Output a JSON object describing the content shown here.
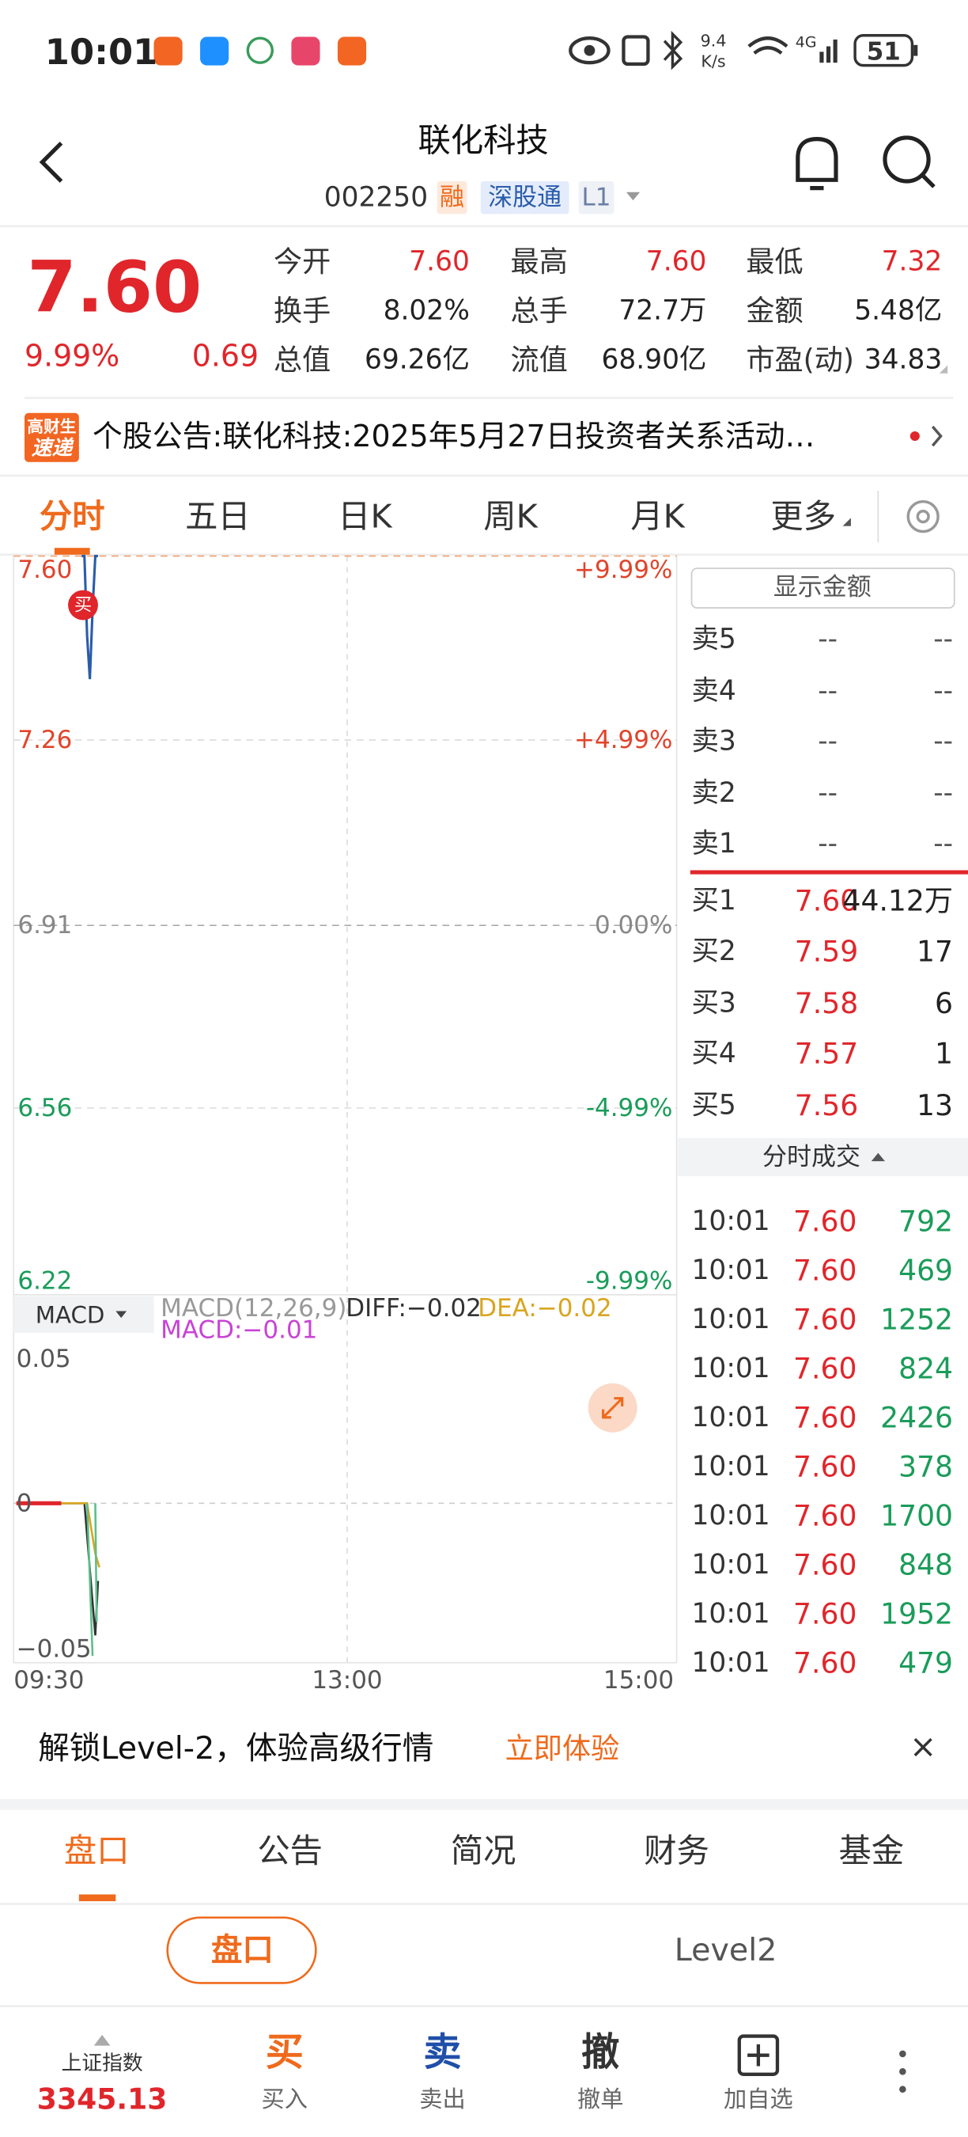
{
  "status_bar": {
    "time": "10:01",
    "net_speed_value": "9.4",
    "net_speed_unit": "K/s",
    "signal": "4G",
    "battery": "51"
  },
  "header": {
    "title": "联化科技",
    "code": "002250",
    "tags": [
      "融",
      "深股通",
      "L1"
    ]
  },
  "quote": {
    "price": "7.60",
    "change_pct": "9.99%",
    "change": "0.69",
    "stats": [
      {
        "label": "今开",
        "value": "7.60",
        "color": "#e0262b"
      },
      {
        "label": "最高",
        "value": "7.60",
        "color": "#e0262b"
      },
      {
        "label": "最低",
        "value": "7.32",
        "color": "#e0262b"
      },
      {
        "label": "换手",
        "value": "8.02%",
        "color": "#222222"
      },
      {
        "label": "总手",
        "value": "72.7万",
        "color": "#222222"
      },
      {
        "label": "金额",
        "value": "5.48亿",
        "color": "#222222"
      },
      {
        "label": "总值",
        "value": "69.26亿",
        "color": "#222222"
      },
      {
        "label": "流值",
        "value": "68.90亿",
        "color": "#222222"
      },
      {
        "label": "市盈(动)",
        "value": "34.83",
        "color": "#222222"
      }
    ]
  },
  "news": {
    "badge_top": "高财生",
    "badge_bottom": "速递",
    "text": "个股公告:联化科技:2025年5月27日投资者关系活动…"
  },
  "tabs": [
    "分时",
    "五日",
    "日K",
    "周K",
    "月K",
    "更多"
  ],
  "chart": {
    "left_labels": [
      "7.60",
      "7.26",
      "6.91",
      "6.56",
      "6.22"
    ],
    "right_labels": [
      "+9.99%",
      "+4.99%",
      "0.00%",
      "-4.99%",
      "-9.99%"
    ],
    "label_colors": [
      "#e0442b",
      "#e0442b",
      "#888888",
      "#1b9c5a",
      "#1b9c5a"
    ],
    "ylim": [
      6.22,
      7.6
    ],
    "price_line": [
      7.6,
      7.6,
      7.45,
      7.37,
      7.5,
      7.6,
      7.6
    ],
    "price_color": "#2a5caa",
    "buy_marker": "买",
    "x_labels": [
      "09:30",
      "13:00",
      "15:00"
    ]
  },
  "macd": {
    "selector": "MACD",
    "params": "MACD(12,26,9)",
    "diff": "DIFF:−0.02",
    "dea": "DEA:−0.02",
    "macd": "MACD:−0.01",
    "y_labels": [
      "0.05",
      "0",
      "−0.05"
    ]
  },
  "order_book": {
    "show_amount": "显示金额",
    "sell": [
      {
        "label": "卖5",
        "price": "--",
        "volume": "--"
      },
      {
        "label": "卖4",
        "price": "--",
        "volume": "--"
      },
      {
        "label": "卖3",
        "price": "--",
        "volume": "--"
      },
      {
        "label": "卖2",
        "price": "--",
        "volume": "--"
      },
      {
        "label": "卖1",
        "price": "--",
        "volume": "--"
      }
    ],
    "buy": [
      {
        "label": "买1",
        "price": "7.60",
        "volume": "44.12万"
      },
      {
        "label": "买2",
        "price": "7.59",
        "volume": "17"
      },
      {
        "label": "买3",
        "price": "7.58",
        "volume": "6"
      },
      {
        "label": "买4",
        "price": "7.57",
        "volume": "1"
      },
      {
        "label": "买5",
        "price": "7.56",
        "volume": "13"
      }
    ],
    "trades_title": "分时成交",
    "trades": [
      {
        "time": "10:01",
        "price": "7.60",
        "volume": "792"
      },
      {
        "time": "10:01",
        "price": "7.60",
        "volume": "469"
      },
      {
        "time": "10:01",
        "price": "7.60",
        "volume": "1252"
      },
      {
        "time": "10:01",
        "price": "7.60",
        "volume": "824"
      },
      {
        "time": "10:01",
        "price": "7.60",
        "volume": "2426"
      },
      {
        "time": "10:01",
        "price": "7.60",
        "volume": "378"
      },
      {
        "time": "10:01",
        "price": "7.60",
        "volume": "1700"
      },
      {
        "time": "10:01",
        "price": "7.60",
        "volume": "848"
      },
      {
        "time": "10:01",
        "price": "7.60",
        "volume": "1952"
      },
      {
        "time": "10:01",
        "price": "7.60",
        "volume": "479"
      }
    ]
  },
  "banner": {
    "text": "解锁Level-2，体验高级行情",
    "action": "立即体验"
  },
  "bottom_tabs": [
    "盘口",
    "公告",
    "简况",
    "财务",
    "基金"
  ],
  "sub_tabs": [
    "盘口",
    "Level2"
  ],
  "bottom_nav": {
    "index_name": "上证指数",
    "index_value": "3345.13",
    "actions": [
      {
        "icon": "买",
        "label": "买入"
      },
      {
        "icon": "卖",
        "label": "卖出"
      },
      {
        "icon": "撤",
        "label": "撤单"
      },
      {
        "label": "加自选"
      }
    ]
  }
}
